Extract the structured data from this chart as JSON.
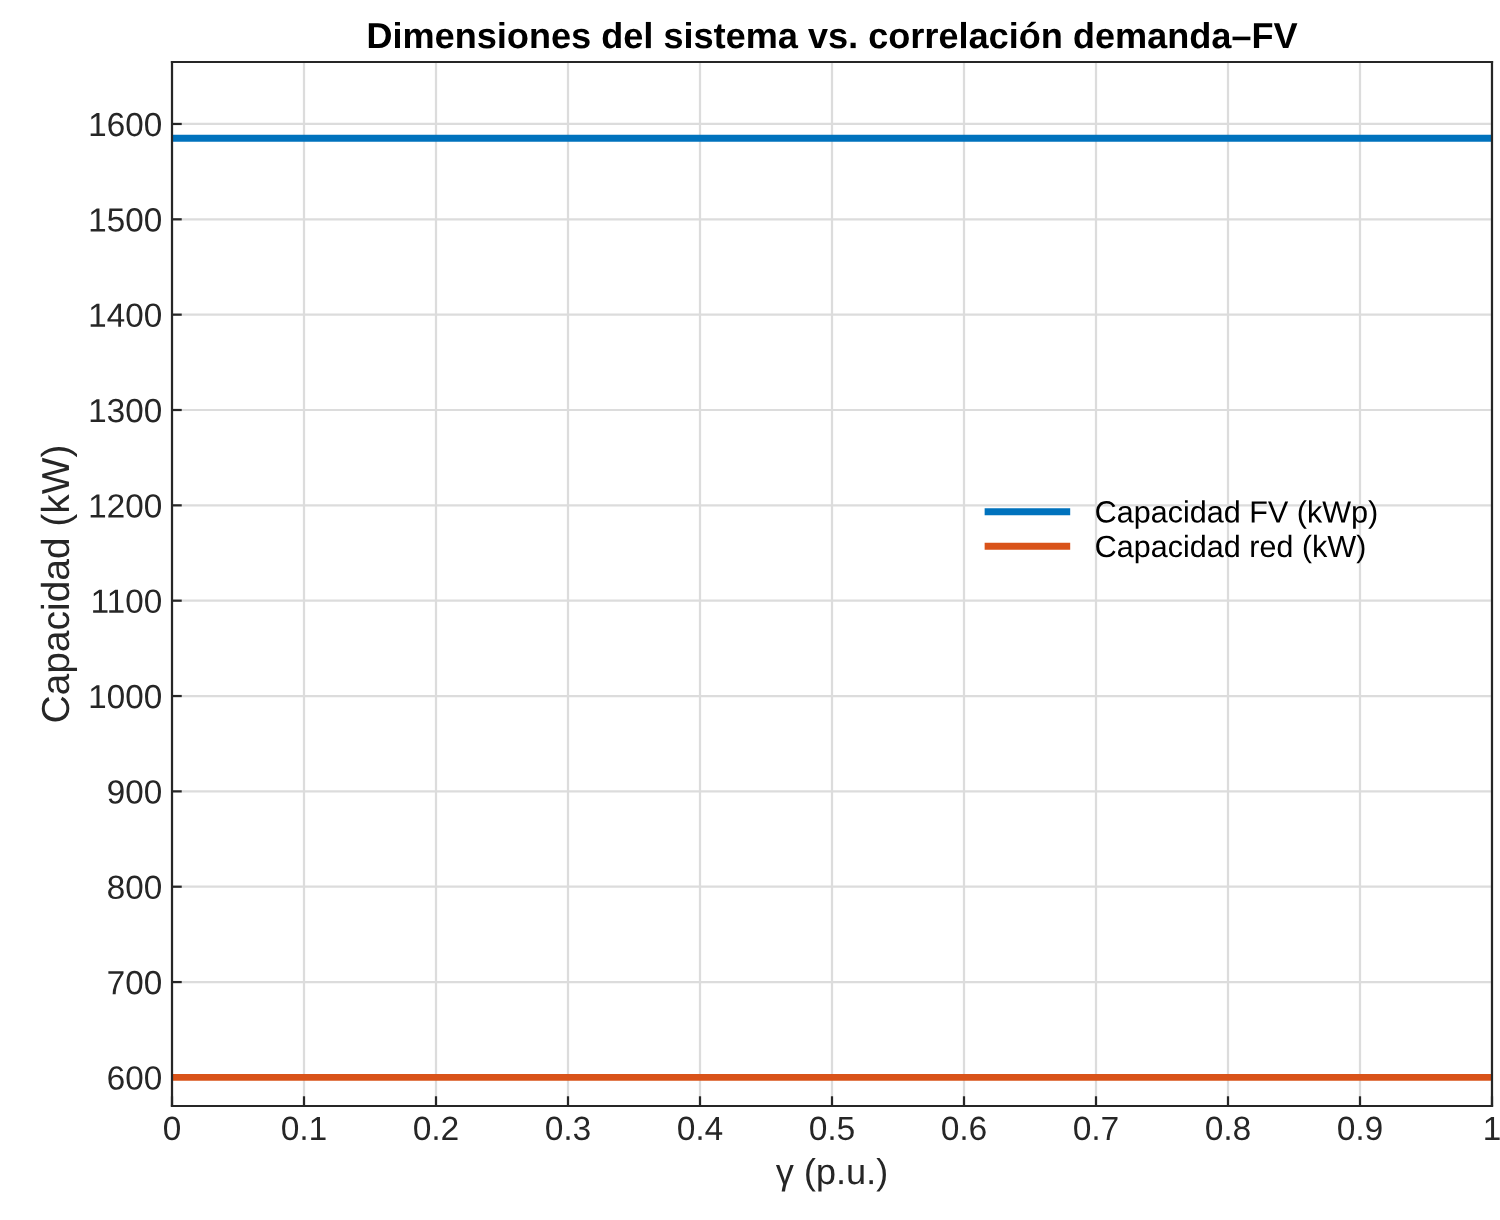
{
  "chart_data": {
    "type": "line",
    "title": "Dimensiones del sistema vs. correlación demanda–FV",
    "xlabel": "γ (p.u.)",
    "ylabel": "Capacidad (kW)",
    "x": [
      0,
      1
    ],
    "series": [
      {
        "name": "Capacidad FV (kWp)",
        "color": "#0072bd",
        "values": [
          1585,
          1585
        ]
      },
      {
        "name": "Capacidad red (kW)",
        "color": "#d95319",
        "values": [
          600,
          600
        ]
      }
    ],
    "xlim": [
      0,
      1
    ],
    "xticks": [
      0,
      0.1,
      0.2,
      0.3,
      0.4,
      0.5,
      0.6,
      0.7,
      0.8,
      0.9,
      1
    ],
    "ylim": [
      570,
      1665
    ],
    "yticks": [
      600,
      700,
      800,
      900,
      1000,
      1100,
      1200,
      1300,
      1400,
      1500,
      1600
    ],
    "grid": true,
    "legend": "right",
    "marker": "none",
    "line_style": "solid"
  }
}
